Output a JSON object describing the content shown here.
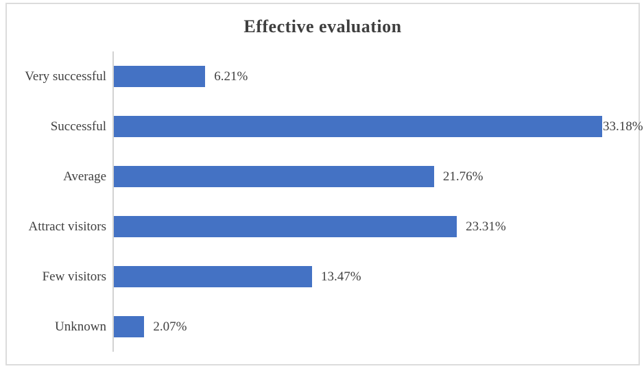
{
  "chart_data": {
    "type": "bar",
    "orientation": "horizontal",
    "title": "Effective evaluation",
    "categories": [
      "Very successful",
      "Successful",
      "Average",
      "Attract visitors",
      "Few visitors",
      "Unknown"
    ],
    "values": [
      6.21,
      33.18,
      21.76,
      23.31,
      13.47,
      2.07
    ],
    "data_labels": [
      "6.21%",
      "33.18%",
      "21.76%",
      "23.31%",
      "13.47%",
      "2.07%"
    ],
    "xlabel": "",
    "ylabel": "",
    "xlim": [
      0,
      35
    ],
    "grid": false,
    "legend": "none",
    "bar_color": "#4472C4"
  },
  "colors": {
    "bar": "#4472C4",
    "title_text": "#3f3f3f",
    "label_text": "#404040",
    "axis_line": "#d2d2d2",
    "frame_border": "#dcdcdc"
  }
}
